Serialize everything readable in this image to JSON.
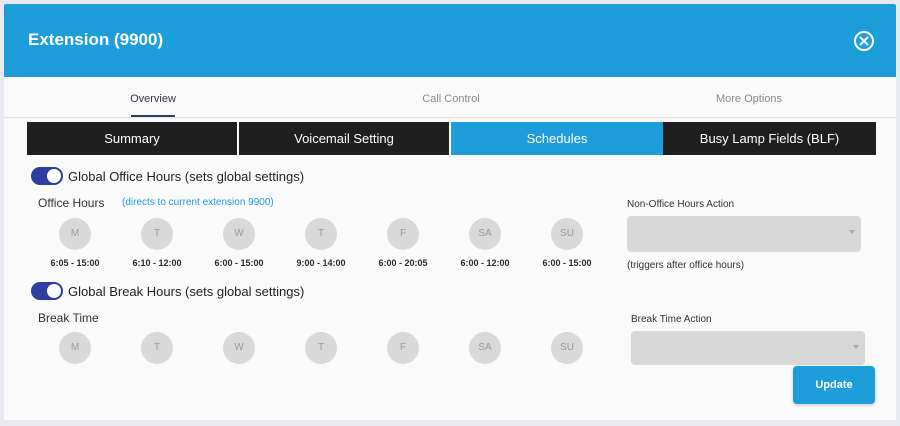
{
  "header": {
    "title": "Extension (9900)",
    "close_icon": "close-circle-icon"
  },
  "tabs": [
    {
      "label": "Overview",
      "active": true
    },
    {
      "label": "Call Control",
      "active": false
    },
    {
      "label": "More Options",
      "active": false
    }
  ],
  "subtabs": [
    {
      "label": "Summary",
      "active": false
    },
    {
      "label": "Voicemail Setting",
      "active": false
    },
    {
      "label": "Schedules",
      "active": true
    },
    {
      "label": "Busy Lamp Fields (BLF)",
      "active": false
    }
  ],
  "office": {
    "toggle_label": "Global Office Hours (sets global settings)",
    "toggle_on": true,
    "hours_label": "Office Hours",
    "hint": "(directs to current extension 9900)",
    "days": [
      "M",
      "T",
      "W",
      "T",
      "F",
      "SA",
      "SU"
    ],
    "times": [
      "6:05 - 15:00",
      "6:10 - 12:00",
      "6:00 - 15:00",
      "9:00 - 14:00",
      "6:00 - 20:05",
      "6:00 - 12:00",
      "6:00 - 15:00"
    ],
    "action_label": "Non-Office Hours Action",
    "action_value": "",
    "action_note": "(triggers after office hours)"
  },
  "break": {
    "toggle_label": "Global Break Hours (sets global settings)",
    "toggle_on": true,
    "time_label": "Break Time",
    "days": [
      "M",
      "T",
      "W",
      "T",
      "F",
      "SA",
      "SU"
    ],
    "action_label": "Break Time Action",
    "action_value": ""
  },
  "update_label": "Update",
  "colors": {
    "accent": "#1e9ddb",
    "toggle": "#2d3fa0",
    "dark_tab": "#1f1f1f"
  }
}
